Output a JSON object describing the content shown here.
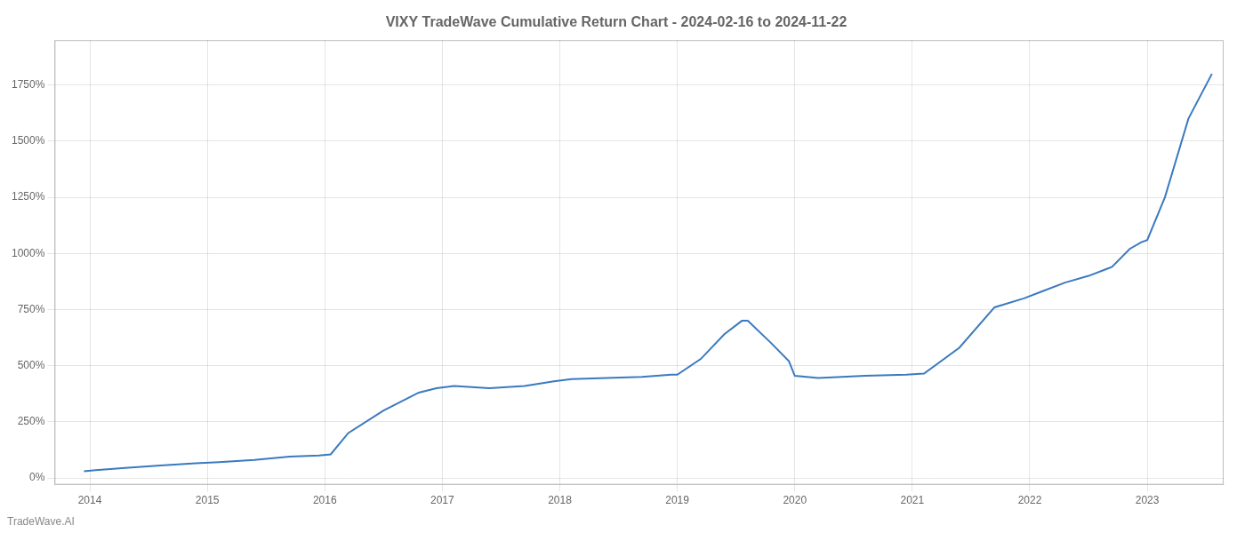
{
  "chart_data": {
    "type": "line",
    "title": "VIXY TradeWave Cumulative Return Chart - 2024-02-16 to 2024-11-22",
    "annotations": [
      {
        "text": "TradeWave.AI"
      }
    ],
    "color": "#3a7abf",
    "grid": true,
    "x": [
      2013.95,
      2014.05,
      2014.3,
      2014.6,
      2014.9,
      2015.1,
      2015.4,
      2015.7,
      2015.95,
      2016.05,
      2016.2,
      2016.5,
      2016.8,
      2016.95,
      2017.1,
      2017.4,
      2017.7,
      2017.95,
      2018.1,
      2018.4,
      2018.7,
      2018.95,
      2019.0,
      2019.2,
      2019.4,
      2019.55,
      2019.6,
      2019.8,
      2019.95,
      2020.0,
      2020.2,
      2020.4,
      2020.6,
      2020.95,
      2021.1,
      2021.4,
      2021.7,
      2021.95,
      2022.1,
      2022.3,
      2022.5,
      2022.65,
      2022.7,
      2022.85,
      2022.95,
      2023.0,
      2023.15,
      2023.35,
      2023.55
    ],
    "values": [
      30,
      35,
      45,
      55,
      65,
      70,
      80,
      95,
      100,
      105,
      200,
      300,
      380,
      400,
      410,
      400,
      410,
      430,
      440,
      445,
      450,
      460,
      460,
      530,
      640,
      700,
      700,
      600,
      520,
      455,
      445,
      450,
      455,
      460,
      465,
      580,
      760,
      800,
      830,
      870,
      900,
      930,
      940,
      1020,
      1050,
      1060,
      1250,
      1600,
      1800
    ],
    "xlim": [
      2013.7,
      2023.65
    ],
    "xticks": [
      2014,
      2015,
      2016,
      2017,
      2018,
      2019,
      2020,
      2021,
      2022,
      2023
    ],
    "ylim": [
      -30,
      1950
    ],
    "yticks": [
      {
        "value": 0,
        "label": "0%"
      },
      {
        "value": 250,
        "label": "250%"
      },
      {
        "value": 500,
        "label": "500%"
      },
      {
        "value": 750,
        "label": "750%"
      },
      {
        "value": 1000,
        "label": "1000%"
      },
      {
        "value": 1250,
        "label": "1250%"
      },
      {
        "value": 1500,
        "label": "1500%"
      },
      {
        "value": 1750,
        "label": "1750%"
      }
    ]
  }
}
